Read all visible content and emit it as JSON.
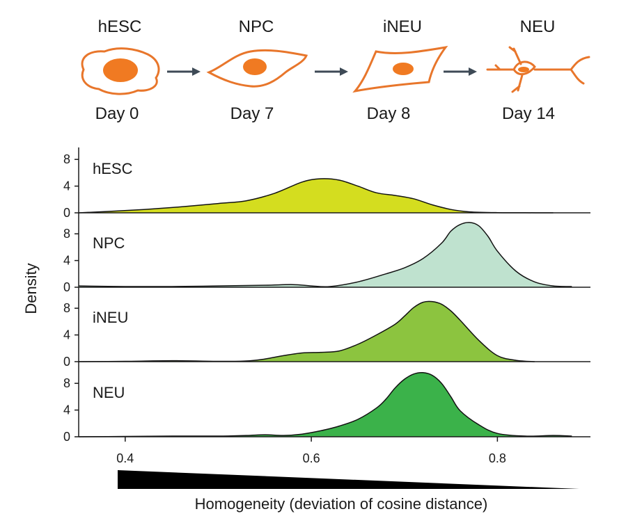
{
  "stages": [
    {
      "name": "hESC",
      "day": "Day 0"
    },
    {
      "name": "NPC",
      "day": "Day 7"
    },
    {
      "name": "iNEU",
      "day": "Day 8"
    },
    {
      "name": "NEU",
      "day": "Day 14"
    }
  ],
  "colors": {
    "cell_outline": "#e8762b",
    "cell_nucleus": "#f07a22",
    "arrow": "#3e4a56",
    "axis": "#1a1a1a",
    "gradient_bar": "#000000"
  },
  "chart_data": {
    "type": "area",
    "layout": "stacked-panels (ridgeline)",
    "xlabel": "Homogeneity (deviation of cosine distance)",
    "ylabel": "Density",
    "xlim": [
      0.35,
      0.9
    ],
    "xticks": [
      0.4,
      0.6,
      0.8
    ],
    "xtick_labels": [
      "0.4",
      "0.6",
      "0.8"
    ],
    "ylim": [
      0,
      10
    ],
    "yticks": [
      0,
      4,
      8
    ],
    "ytick_labels": [
      "0",
      "4",
      "8"
    ],
    "grid": false,
    "legend": "none (panel labels inside each panel, top-left)",
    "gradient_bar": "black wedge under x axis, thick at low homogeneity, tapering toward high",
    "series": [
      {
        "name": "hESC",
        "color": "#d4dd1f",
        "x": [
          0.35,
          0.38,
          0.42,
          0.46,
          0.5,
          0.53,
          0.56,
          0.59,
          0.61,
          0.63,
          0.65,
          0.67,
          0.69,
          0.71,
          0.73,
          0.75,
          0.77,
          0.8,
          0.83,
          0.86
        ],
        "y": [
          0.0,
          0.2,
          0.5,
          0.9,
          1.4,
          1.8,
          2.9,
          4.6,
          5.1,
          4.9,
          4.0,
          3.0,
          2.6,
          2.1,
          1.2,
          0.5,
          0.15,
          0.03,
          0.01,
          0.0
        ]
      },
      {
        "name": "NPC",
        "color": "#bfe2cf",
        "x": [
          0.35,
          0.4,
          0.45,
          0.5,
          0.55,
          0.58,
          0.6,
          0.62,
          0.65,
          0.68,
          0.7,
          0.72,
          0.74,
          0.75,
          0.76,
          0.77,
          0.78,
          0.79,
          0.8,
          0.82,
          0.84,
          0.86,
          0.88
        ],
        "y": [
          0.2,
          0.1,
          0.1,
          0.2,
          0.3,
          0.4,
          0.2,
          0.1,
          0.8,
          2.0,
          2.9,
          4.3,
          6.6,
          8.4,
          9.4,
          9.7,
          9.2,
          7.6,
          5.4,
          2.4,
          0.8,
          0.2,
          0.1
        ]
      },
      {
        "name": "iNEU",
        "color": "#8cc43f",
        "x": [
          0.35,
          0.4,
          0.45,
          0.5,
          0.53,
          0.55,
          0.57,
          0.59,
          0.61,
          0.63,
          0.65,
          0.67,
          0.69,
          0.7,
          0.71,
          0.72,
          0.73,
          0.74,
          0.75,
          0.76,
          0.78,
          0.8,
          0.82,
          0.84
        ],
        "y": [
          0.0,
          0.05,
          0.15,
          0.05,
          0.1,
          0.4,
          0.9,
          1.3,
          1.4,
          1.6,
          2.6,
          4.0,
          5.6,
          6.8,
          8.1,
          8.9,
          9.0,
          8.6,
          7.6,
          6.2,
          3.2,
          0.9,
          0.2,
          0.0
        ]
      },
      {
        "name": "NEU",
        "color": "#3bb24a",
        "x": [
          0.35,
          0.4,
          0.45,
          0.5,
          0.53,
          0.55,
          0.57,
          0.59,
          0.61,
          0.63,
          0.65,
          0.67,
          0.68,
          0.69,
          0.7,
          0.71,
          0.72,
          0.73,
          0.74,
          0.75,
          0.76,
          0.78,
          0.8,
          0.83,
          0.86,
          0.88
        ],
        "y": [
          0.0,
          0.05,
          0.1,
          0.1,
          0.2,
          0.3,
          0.2,
          0.4,
          0.9,
          1.6,
          2.6,
          4.3,
          5.6,
          7.3,
          8.6,
          9.4,
          9.6,
          9.2,
          8.0,
          6.0,
          3.9,
          1.8,
          0.5,
          0.1,
          0.2,
          0.1
        ]
      }
    ]
  }
}
